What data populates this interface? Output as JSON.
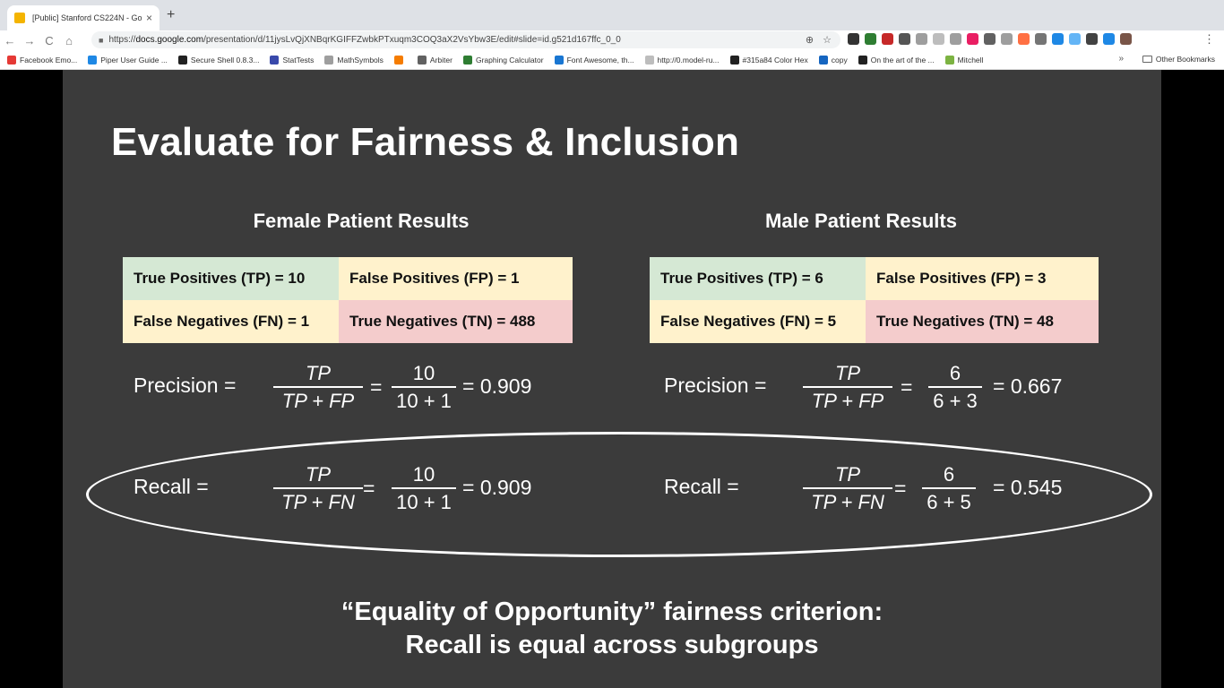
{
  "browser": {
    "tab_title": "[Public] Stanford CS224N - Go",
    "tab_close": "×",
    "new_tab": "+",
    "url_prefix": "https://",
    "url_host": "docs.google.com",
    "url_path": "/presentation/d/11jysLvQjXNBqrKGIFFZwbkPTxuqm3COQ3aX2VsYbw3E/edit#slide=id.g521d167ffc_0_0",
    "nav_back": "←",
    "nav_forward": "→",
    "nav_reload": "C",
    "nav_home": "⌂",
    "zoom_icon_glyph": "⊕",
    "star_glyph": "☆",
    "menu_glyph": "⋮",
    "bookmarks_more": "»",
    "other_bookmarks": "Other Bookmarks"
  },
  "bookmarks": [
    {
      "label": "Facebook Emo...",
      "color": "#e53935"
    },
    {
      "label": "Piper User Guide ...",
      "color": "#1e88e5"
    },
    {
      "label": "Secure Shell 0.8.3...",
      "color": "#212121"
    },
    {
      "label": "StatTests",
      "color": "#3949ab"
    },
    {
      "label": "MathSymbols",
      "color": "#9e9e9e"
    },
    {
      "label": "",
      "color": "#f57c00"
    },
    {
      "label": "Arbiter",
      "color": "#616161"
    },
    {
      "label": "Graphing Calculator",
      "color": "#2e7d32"
    },
    {
      "label": "Font Awesome, th...",
      "color": "#1976d2"
    },
    {
      "label": "http://0.model-ru...",
      "color": "#bdbdbd"
    },
    {
      "label": "#315a84 Color Hex",
      "color": "#212121"
    },
    {
      "label": "copy",
      "color": "#1565c0"
    },
    {
      "label": "On the art of the ...",
      "color": "#212121"
    },
    {
      "label": "Mitchell",
      "color": "#7cb342"
    }
  ],
  "extensions": [
    "#333333",
    "#2e7d32",
    "#c62828",
    "#555555",
    "#9e9e9e",
    "#bdbdbd",
    "#9e9e9e",
    "#e91e63",
    "#616161",
    "#9e9e9e",
    "#ff7043",
    "#757575",
    "#1e88e5",
    "#64b5f6",
    "#424242",
    "#1e88e5",
    "#795548"
  ],
  "slide": {
    "title": "Evaluate for Fairness & Inclusion",
    "female": {
      "heading": "Female Patient Results",
      "tp": "True Positives (TP) = 10",
      "fp": "False Positives (FP) = 1",
      "fn": "False Negatives (FN) = 1",
      "tn": "True Negatives (TN) = 488",
      "precision_label": "Precision =",
      "precision_sym_num": "TP",
      "precision_sym_den": "TP + FP",
      "precision_num": "10",
      "precision_den": "10 + 1",
      "precision_result": "= 0.909",
      "recall_label": "Recall =",
      "recall_sym_num": "TP",
      "recall_sym_den": "TP + FN",
      "recall_num": "10",
      "recall_den": "10 + 1",
      "recall_result": "= 0.909"
    },
    "male": {
      "heading": "Male Patient Results",
      "tp": "True Positives (TP) = 6",
      "fp": "False Positives (FP) = 3",
      "fn": "False Negatives (FN) = 5",
      "tn": "True Negatives (TN) = 48",
      "precision_label": "Precision =",
      "precision_sym_num": "TP",
      "precision_sym_den": "TP + FP",
      "precision_num": "6",
      "precision_den": "6 + 3",
      "precision_result": "= 0.667",
      "recall_label": "Recall =",
      "recall_sym_num": "TP",
      "recall_sym_den": "TP + FN",
      "recall_num": "6",
      "recall_den": "6 + 5",
      "recall_result": "= 0.545"
    },
    "equals": "=",
    "footer_line1": "“Equality of Opportunity” fairness criterion:",
    "footer_line2": "Recall is equal across subgroups"
  }
}
